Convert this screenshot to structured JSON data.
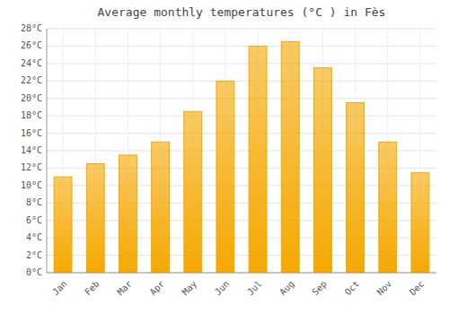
{
  "chart_data": {
    "type": "bar",
    "title": "Average monthly temperatures (°C ) in Fès",
    "categories": [
      "Jan",
      "Feb",
      "Mar",
      "Apr",
      "May",
      "Jun",
      "Jul",
      "Aug",
      "Sep",
      "Oct",
      "Nov",
      "Dec"
    ],
    "values": [
      11.0,
      12.5,
      13.5,
      15.0,
      18.5,
      22.0,
      26.0,
      26.5,
      23.5,
      19.5,
      15.0,
      11.5
    ],
    "color": "#F5A800",
    "ylim": [
      0,
      28
    ],
    "yticks": [
      {
        "value": 0,
        "label": "0°C"
      },
      {
        "value": 2,
        "label": "2°C"
      },
      {
        "value": 4,
        "label": "4°C"
      },
      {
        "value": 6,
        "label": "6°C"
      },
      {
        "value": 8,
        "label": "8°C"
      },
      {
        "value": 10,
        "label": "10°C"
      },
      {
        "value": 12,
        "label": "12°C"
      },
      {
        "value": 14,
        "label": "14°C"
      },
      {
        "value": 16,
        "label": "16°C"
      },
      {
        "value": 18,
        "label": "18°C"
      },
      {
        "value": 20,
        "label": "20°C"
      },
      {
        "value": 22,
        "label": "22°C"
      },
      {
        "value": 24,
        "label": "24°C"
      },
      {
        "value": 26,
        "label": "26°C"
      },
      {
        "value": 28,
        "label": "28°C"
      }
    ],
    "grid": true
  }
}
